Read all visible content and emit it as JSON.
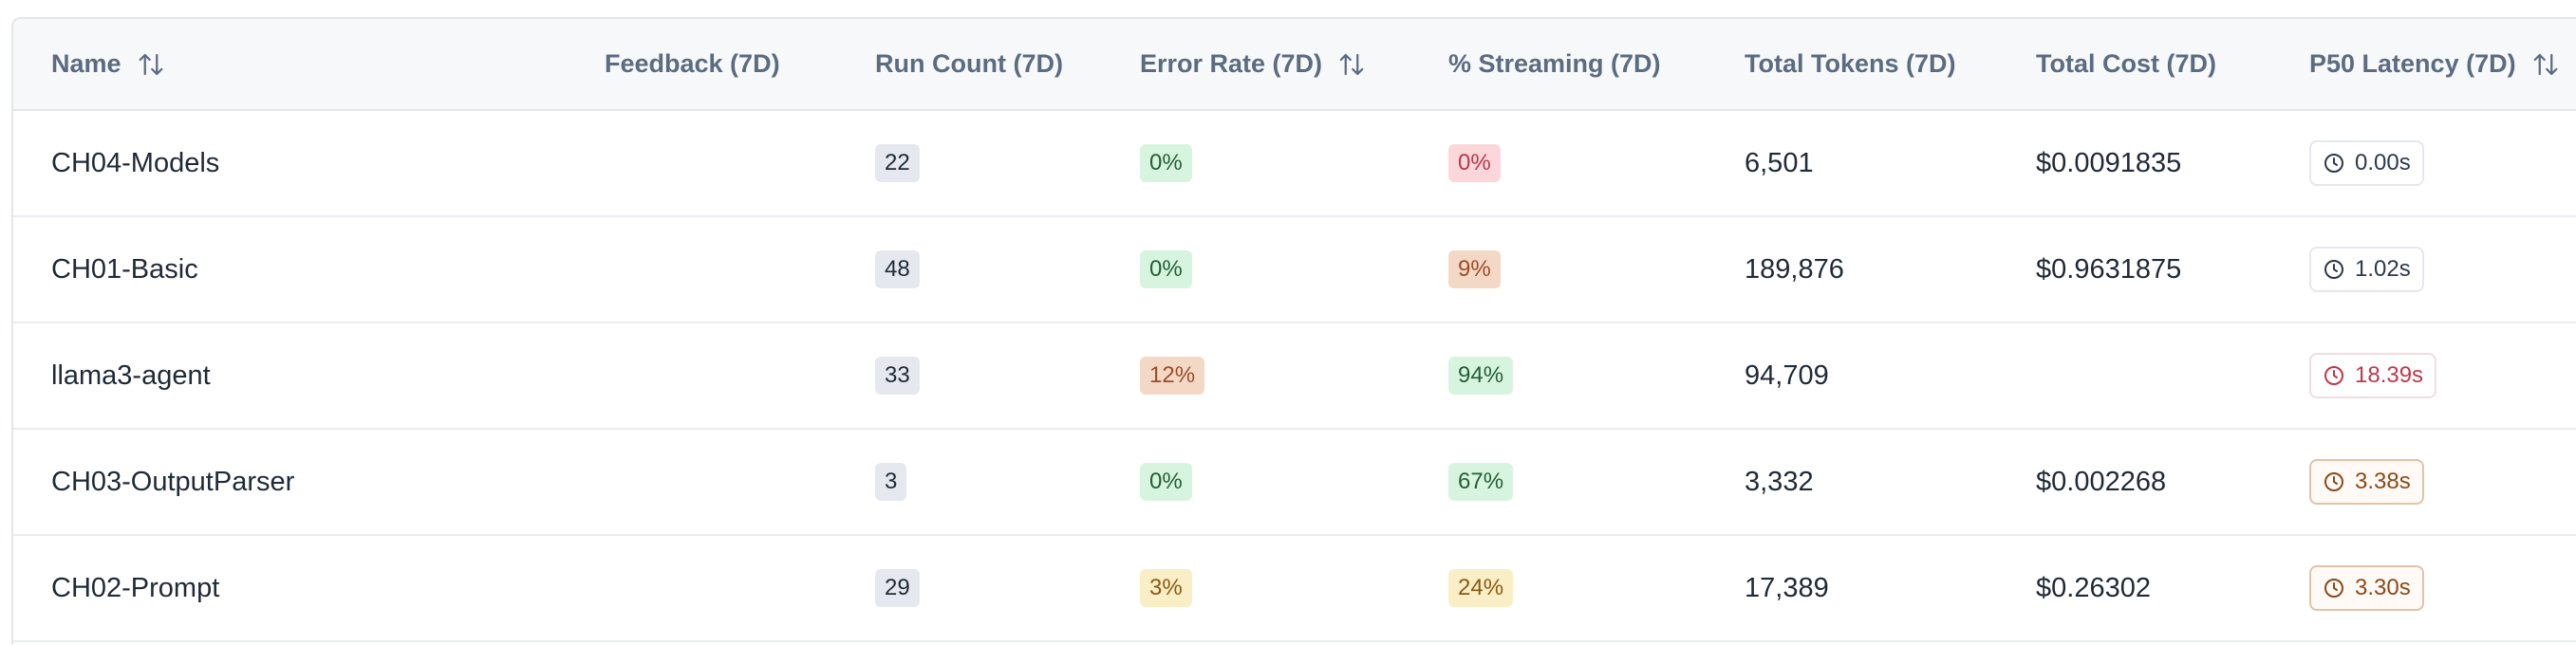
{
  "table": {
    "columns": [
      {
        "label": "Name",
        "sortable": true
      },
      {
        "label": "Feedback (7D)",
        "sortable": false
      },
      {
        "label": "Run Count (7D)",
        "sortable": false
      },
      {
        "label": "Error Rate (7D)",
        "sortable": true
      },
      {
        "label": "% Streaming (7D)",
        "sortable": false
      },
      {
        "label": "Total Tokens (7D)",
        "sortable": false
      },
      {
        "label": "Total Cost (7D)",
        "sortable": false
      },
      {
        "label": "P50 Latency (7D)",
        "sortable": true
      }
    ],
    "rows": [
      {
        "name": "CH04-Models",
        "feedback": "",
        "run_count": "22",
        "error_rate": "0%",
        "error_rate_tone": "green",
        "streaming": "0%",
        "streaming_tone": "red",
        "total_tokens": "6,501",
        "total_cost": "$0.0091835",
        "p50_latency": "0.00s",
        "latency_tone": "neutral"
      },
      {
        "name": "CH01-Basic",
        "feedback": "",
        "run_count": "48",
        "error_rate": "0%",
        "error_rate_tone": "green",
        "streaming": "9%",
        "streaming_tone": "orange",
        "total_tokens": "189,876",
        "total_cost": "$0.9631875",
        "p50_latency": "1.02s",
        "latency_tone": "neutral"
      },
      {
        "name": "llama3-agent",
        "feedback": "",
        "run_count": "33",
        "error_rate": "12%",
        "error_rate_tone": "orange",
        "streaming": "94%",
        "streaming_tone": "green",
        "total_tokens": "94,709",
        "total_cost": "",
        "p50_latency": "18.39s",
        "latency_tone": "red"
      },
      {
        "name": "CH03-OutputParser",
        "feedback": "",
        "run_count": "3",
        "error_rate": "0%",
        "error_rate_tone": "green",
        "streaming": "67%",
        "streaming_tone": "green",
        "total_tokens": "3,332",
        "total_cost": "$0.002268",
        "p50_latency": "3.38s",
        "latency_tone": "brown"
      },
      {
        "name": "CH02-Prompt",
        "feedback": "",
        "run_count": "29",
        "error_rate": "3%",
        "error_rate_tone": "yellow",
        "streaming": "24%",
        "streaming_tone": "yellow",
        "total_tokens": "17,389",
        "total_cost": "$0.26302",
        "p50_latency": "3.30s",
        "latency_tone": "brown"
      }
    ]
  },
  "icons": {
    "sort": "sort-arrows-icon",
    "latency": "clock-icon"
  },
  "colors": {
    "badge_gray": "#e5e9ef",
    "badge_green": "#d7f5de",
    "badge_red": "#fbd7dc",
    "badge_orange": "#f4d8c6",
    "badge_yellow": "#faeec6",
    "latency_red": "#c0384a",
    "latency_brown": "#8a4a1a"
  }
}
